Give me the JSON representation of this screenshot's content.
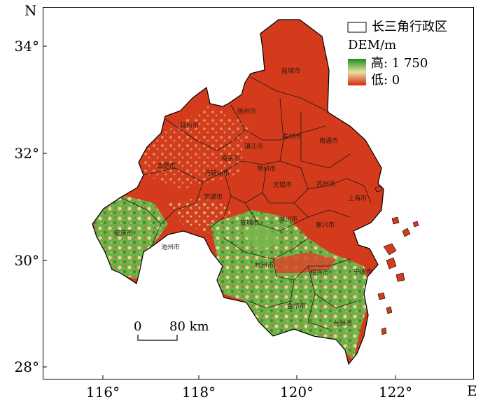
{
  "north_label": "N",
  "east_label": "E",
  "lat_ticks": [
    "34°",
    "32°",
    "30°",
    "28°"
  ],
  "lon_ticks": [
    "116°",
    "118°",
    "120°",
    "122°"
  ],
  "legend": {
    "boundary_label": "长三角行政区",
    "dem_title": "DEM/m",
    "high_label": "高: 1 750",
    "low_label": "低: 0",
    "gradient_colors": [
      "#1e8c1e",
      "#e8e0a0",
      "#d42a10"
    ]
  },
  "scale_bar": {
    "zero": "0",
    "end": "80 km"
  },
  "colors": {
    "lowland": "#d43a1c",
    "upland": "#5fae3c",
    "transition": "#e6d49a",
    "boundary": "#000000"
  },
  "cities": [
    "盐城市",
    "扬州市",
    "泰州市",
    "南通市",
    "滁州市",
    "镇江市",
    "南京市",
    "常州市",
    "无锡市",
    "苏州市",
    "上海市",
    "合肥市",
    "马鞍山市",
    "芜湖市",
    "宣城市",
    "湖州市",
    "嘉兴市",
    "安庆市",
    "池州市",
    "杭州市",
    "绍兴市",
    "宁波市",
    "金华市",
    "台州市"
  ]
}
